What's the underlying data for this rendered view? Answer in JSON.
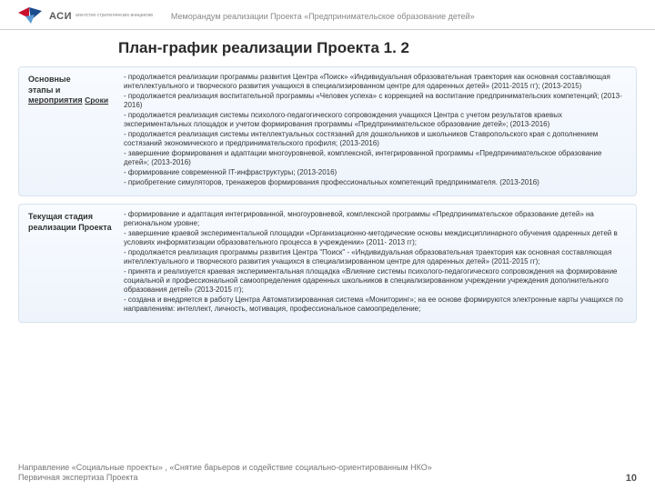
{
  "header": {
    "logo_text": "АСИ",
    "logo_sub": "агентство стратегических инициатив",
    "memo": "Меморандум реализации Проекта «Предпринимательское образование детей»"
  },
  "title": "План-график реализации Проекта 1. 2",
  "block1": {
    "label_line1": "Основные",
    "label_line2": "этапы и",
    "label_line3": "мероприятия",
    "label_col2": "Сроки",
    "body": "- продолжается реализации программы развития Центра «Поиск» «Индивидуальная образовательная траектория как основная составляющая интеллектуального и творческого развития учащихся в специализированном центре для одаренных детей» (2011-2015 гг); (2013-2015)\n- продолжается реализация воспитательной программы «Человек успеха» с коррекцией на воспитание предпринимательских компетенций; (2013-2016)\n- продолжается реализация системы психолого-педагогического сопровождения учащихся Центра с учетом результатов краевых экспериментальных площадок и учетом формирования программы «Предпринимательское образование детей»; (2013-2016)\n- продолжается реализация системы интеллектуальных состязаний для дошкольников и школьников Ставропольского края с дополнением состязаний экономического и предпринимательского профиля; (2013-2016)\n- завершение формирования и адаптации многоуровневой, комплексной, интегрированной программы «Предпринимательское образование детей»; (2013-2016)\n- формирование современной IT-инфраструктуры; (2013-2016)\n- приобретение симуляторов, тренажеров формирования профессиональных компетенций предпринимателя. (2013-2016)"
  },
  "block2": {
    "label": "Текущая стадия реализации Проекта",
    "body": "- формирование и адаптация интегрированной, многоуровневой, комплексной программы «Предпринимательское образование детей» на региональном уровне;\n- завершение краевой экспериментальной площадки «Организационно-методические основы междисциплинарного обучения одаренных детей в условиях информатизации образовательного процесса в учреждении» (2011- 2013 гг);\n- продолжается реализация программы развития Центра \"Поиск\" - «Индивидуальная образовательная траектория как основная составляющая интеллектуального и творческого развития учащихся в специализированном центре для одаренных детей» (2011-2015 гг);\n- принята и реализуется краевая экспериментальная площадка «Влияние системы психолого-педагогического сопровождения на формирование социальной и профессиональной самоопределения одаренных школьников в специализированном учреждении учреждения дополнительного образования детей» (2013-2015 гг);\n- создана и внедряется в работу Центра Автоматизированная система «Мониторинг»; на ее основе формируются электронные карты учащихся по направлениям: интеллект, личность, мотивация, профессиональное самоопределение;"
  },
  "footer": {
    "line1": "Направление «Социальные проекты» , «Снятие барьеров и содействие социально-ориентированным НКО»",
    "line2": "Первичная экспертиза Проекта",
    "page": "10"
  },
  "colors": {
    "logo_red": "#c8102e",
    "logo_blue": "#1a4b8c"
  }
}
